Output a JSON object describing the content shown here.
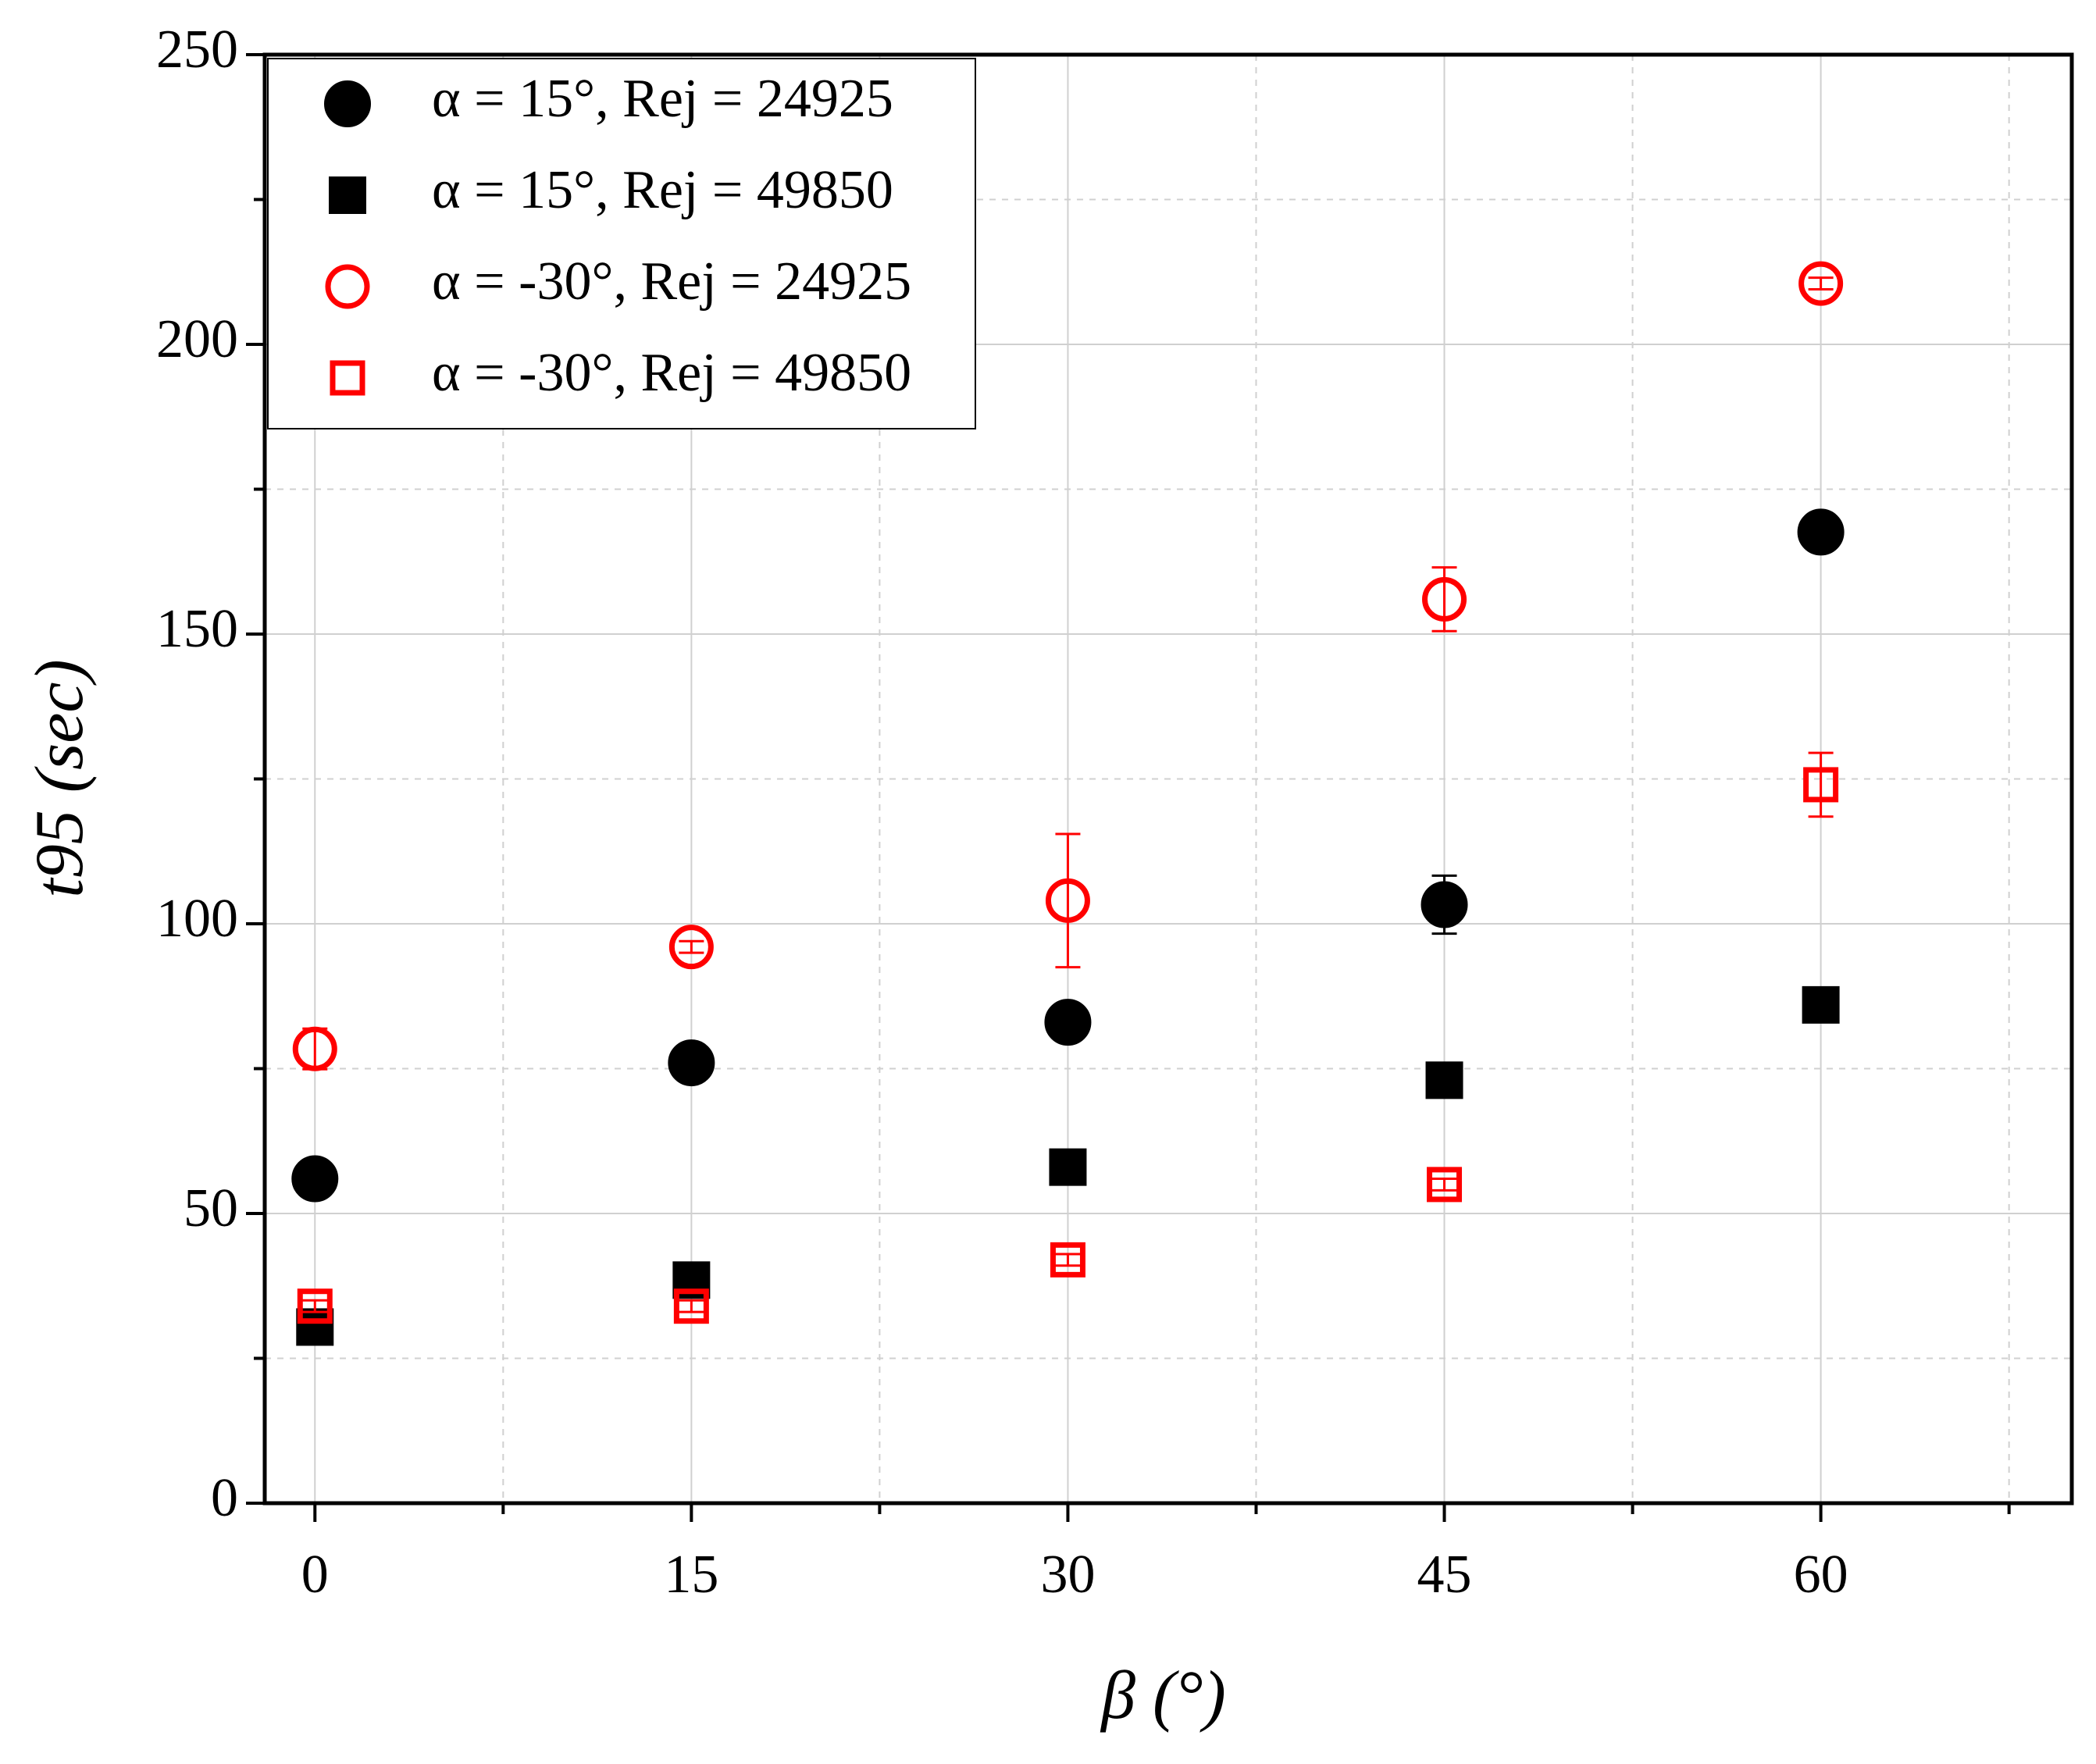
{
  "chart_data": {
    "type": "scatter",
    "xlabel": "β (°)",
    "ylabel": "t95 (sec)",
    "xlim": [
      -2,
      70
    ],
    "ylim": [
      0,
      250
    ],
    "xticks": [
      0,
      15,
      30,
      45,
      60
    ],
    "yticks": [
      0,
      50,
      100,
      150,
      200,
      250
    ],
    "grid": true,
    "legend": "upper left",
    "series": [
      {
        "name": "α = 15°, Rej = 24925",
        "color": "#000000",
        "marker": "circle",
        "filled": true,
        "x": [
          0,
          15,
          30,
          45,
          60
        ],
        "values": [
          56,
          76,
          83,
          103.3,
          167.6
        ],
        "errors": [
          1,
          1,
          1,
          5,
          1
        ]
      },
      {
        "name": "α = 15°, Rej = 49850",
        "color": "#000000",
        "marker": "square",
        "filled": true,
        "x": [
          0,
          15,
          30,
          45,
          60
        ],
        "values": [
          30.4,
          38.5,
          58,
          73,
          86
        ],
        "errors": [
          1,
          1,
          1,
          1,
          1
        ]
      },
      {
        "name": "α = -30°, Rej = 24925",
        "color": "#ff0000",
        "marker": "circle",
        "filled": false,
        "x": [
          0,
          15,
          30,
          45,
          60
        ],
        "values": [
          78.4,
          96,
          104,
          156,
          210.5
        ],
        "errors": [
          3.5,
          1,
          11.5,
          5.5,
          1
        ]
      },
      {
        "name": "α = -30°, Rej = 49850",
        "color": "#ff0000",
        "marker": "square",
        "filled": false,
        "x": [
          0,
          15,
          30,
          45,
          60
        ],
        "values": [
          34,
          34,
          42,
          55,
          124
        ],
        "errors": [
          1,
          1,
          1,
          1,
          5.5
        ]
      }
    ]
  }
}
